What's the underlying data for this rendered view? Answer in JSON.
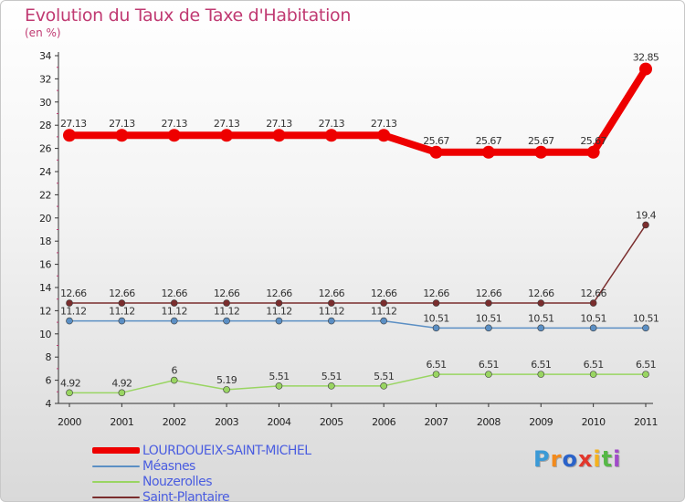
{
  "title": "Evolution du Taux de Taxe d'Habitation",
  "unit": "(en %)",
  "logo": {
    "chars": [
      "P",
      "r",
      "o",
      "x",
      "i",
      "t",
      "i"
    ],
    "colors": [
      "#3b9ad6",
      "#f28a1c",
      "#2a62c9",
      "#e2372c",
      "#f5b21d",
      "#57b847",
      "#a04ac9"
    ]
  },
  "chart_data": {
    "type": "line",
    "x": [
      "2000",
      "2001",
      "2002",
      "2003",
      "2004",
      "2005",
      "2006",
      "2007",
      "2008",
      "2009",
      "2010",
      "2011"
    ],
    "ylim": [
      4,
      34
    ],
    "yticks": [
      "4",
      "6",
      "8",
      "10",
      "12",
      "14",
      "16",
      "18",
      "20",
      "22",
      "24",
      "26",
      "28",
      "30",
      "32",
      "34"
    ],
    "grid": false,
    "legend_position": "bottom-left",
    "series": [
      {
        "name": "LOURDOUEIX-SAINT-MICHEL",
        "color": "#ee0000",
        "values": [
          27.13,
          27.13,
          27.13,
          27.13,
          27.13,
          27.13,
          27.13,
          25.67,
          25.67,
          25.67,
          25.67,
          32.85
        ],
        "labels": [
          "27.13",
          "27.13",
          "27.13",
          "27.13",
          "27.13",
          "27.13",
          "27.13",
          "25.67",
          "25.67",
          "25.67",
          "25.67",
          "32.85"
        ]
      },
      {
        "name": "Méasnes",
        "color": "#5b8fc4",
        "values": [
          11.12,
          11.12,
          11.12,
          11.12,
          11.12,
          11.12,
          11.12,
          10.51,
          10.51,
          10.51,
          10.51,
          10.51
        ],
        "labels": [
          "11.12",
          "11.12",
          "11.12",
          "11.12",
          "11.12",
          "11.12",
          "11.12",
          "10.51",
          "10.51",
          "10.51",
          "10.51",
          "10.51"
        ]
      },
      {
        "name": "Nouzerolles",
        "color": "#99d562",
        "values": [
          4.92,
          4.92,
          6,
          5.19,
          5.51,
          5.51,
          5.51,
          6.51,
          6.51,
          6.51,
          6.51,
          6.51
        ],
        "labels": [
          "4.92",
          "4.92",
          "6",
          "5.19",
          "5.51",
          "5.51",
          "5.51",
          "6.51",
          "6.51",
          "6.51",
          "6.51",
          "6.51"
        ]
      },
      {
        "name": "Saint-Plantaire",
        "color": "#7a2d2d",
        "values": [
          12.66,
          12.66,
          12.66,
          12.66,
          12.66,
          12.66,
          12.66,
          12.66,
          12.66,
          12.66,
          12.66,
          19.4
        ],
        "labels": [
          "12.66",
          "12.66",
          "12.66",
          "12.66",
          "12.66",
          "12.66",
          "12.66",
          "12.66",
          "12.66",
          "12.66",
          "12.66",
          "19.4"
        ]
      }
    ]
  }
}
